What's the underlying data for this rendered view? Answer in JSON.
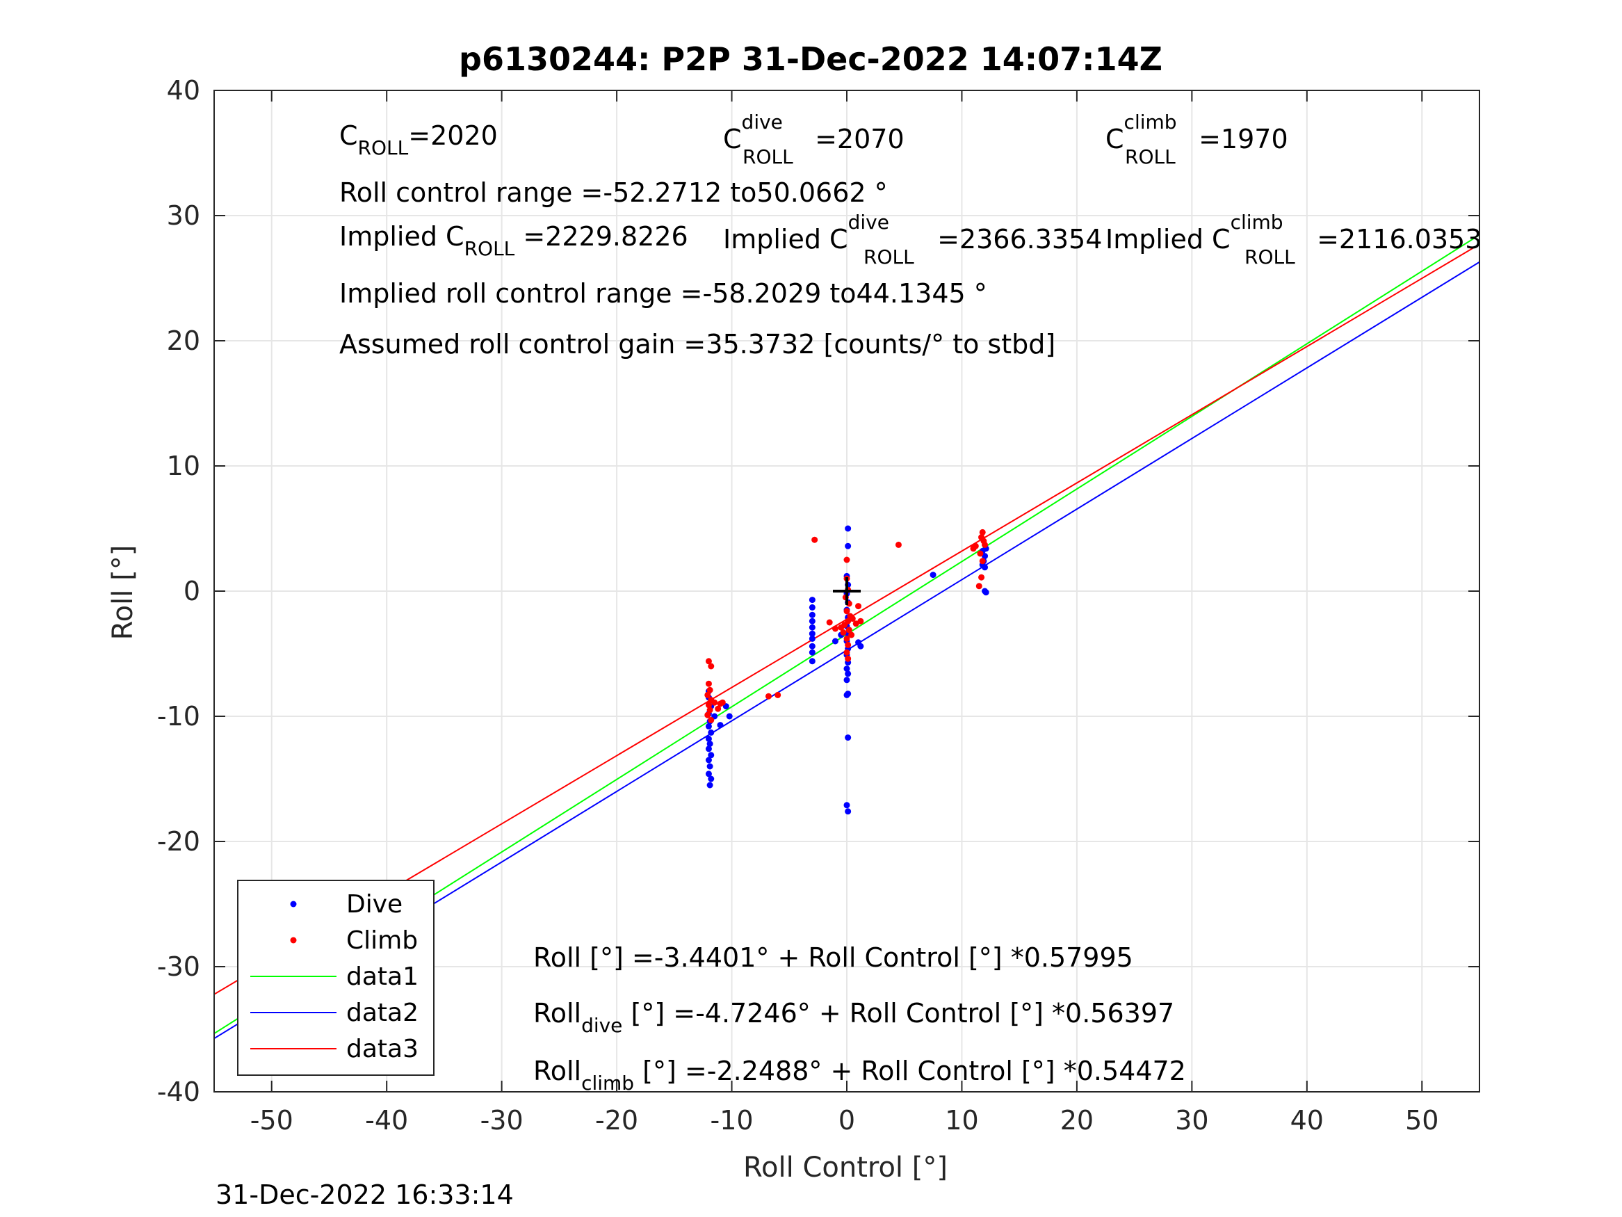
{
  "footer_timestamp": "31-Dec-2022 16:33:14",
  "colors": {
    "dive": "#0000ff",
    "climb": "#ff0000",
    "data1": "#00ff00",
    "data2": "#0000ff",
    "data3": "#ff0000",
    "grid": "#e6e6e6",
    "axis": "#262626"
  },
  "annotations": {
    "c_roll": {
      "base": "C",
      "sub": "ROLL",
      "val": "=2020"
    },
    "c_roll_dive": {
      "base": "C",
      "sup": "dive",
      "sub": "ROLL",
      "val": " =2070"
    },
    "c_roll_climb": {
      "base": "C",
      "sup": "climb",
      "sub": "ROLL",
      "val": " =1970"
    },
    "roll_control_range": "Roll control range =-52.2712 to50.0662 °",
    "implied_c_roll": {
      "base": "Implied C",
      "sub": "ROLL",
      "val": " =2229.8226"
    },
    "implied_c_roll_dive": {
      "base": "Implied C",
      "sup": "dive",
      "sub": "ROLL",
      "val": " =2366.3354"
    },
    "implied_c_roll_climb": {
      "base": "Implied C",
      "sup": "climb",
      "sub": "ROLL",
      "val": " =2116.0353"
    },
    "implied_roll_control_range": "Implied roll control range =-58.2029 to44.1345 °",
    "assumed_gain": "Assumed roll control gain =35.3732 [counts/° to stbd]",
    "fit_all": {
      "base": "Roll",
      "rest": " [°] =-3.4401° + Roll Control [°] *0.57995"
    },
    "fit_dive": {
      "base": "Roll",
      "sub": "dive",
      "rest": " [°] =-4.7246° + Roll Control [°] *0.56397"
    },
    "fit_climb": {
      "base": "Roll",
      "sub": "climb",
      "rest": " [°] =-2.2488° + Roll Control [°] *0.54472"
    }
  },
  "chart_data": {
    "type": "scatter",
    "title": "p6130244: P2P 31-Dec-2022 14:07:14Z",
    "xlabel": "Roll Control [°]",
    "ylabel": "Roll [°]",
    "xlim": [
      -55,
      55
    ],
    "ylim": [
      -40,
      40
    ],
    "xticks": [
      -50,
      -40,
      -30,
      -20,
      -10,
      0,
      10,
      20,
      30,
      40,
      50
    ],
    "yticks": [
      -40,
      -30,
      -20,
      -10,
      0,
      10,
      20,
      30,
      40
    ],
    "grid": true,
    "legend_position": "bottom-left",
    "legend": [
      "Dive",
      "Climb",
      "data1",
      "data2",
      "data3"
    ],
    "series": [
      {
        "name": "Dive",
        "kind": "points",
        "points": [
          [
            0.1,
            5.0
          ],
          [
            0.1,
            3.6
          ],
          [
            0.0,
            1.2
          ],
          [
            0.1,
            0.5
          ],
          [
            0.0,
            -0.2
          ],
          [
            0.1,
            -0.9
          ],
          [
            0.0,
            -1.5
          ],
          [
            0.1,
            -2.1
          ],
          [
            0.0,
            -2.8
          ],
          [
            0.1,
            -3.4
          ],
          [
            0.0,
            -4.0
          ],
          [
            0.1,
            -4.6
          ],
          [
            0.0,
            -5.1
          ],
          [
            0.1,
            -5.7
          ],
          [
            0.0,
            -6.2
          ],
          [
            0.1,
            -6.6
          ],
          [
            0.0,
            -7.1
          ],
          [
            0.1,
            -8.2
          ],
          [
            0.0,
            -8.3
          ],
          [
            0.1,
            -11.7
          ],
          [
            0.0,
            -17.1
          ],
          [
            0.1,
            -17.6
          ],
          [
            1.0,
            -4.1
          ],
          [
            1.2,
            -4.4
          ],
          [
            -0.5,
            -3.5
          ],
          [
            -1.0,
            -4.0
          ],
          [
            -3.0,
            -0.7
          ],
          [
            -3.0,
            -1.3
          ],
          [
            -3.0,
            -1.9
          ],
          [
            -3.0,
            -2.4
          ],
          [
            -3.0,
            -2.9
          ],
          [
            -3.0,
            -3.4
          ],
          [
            -3.0,
            -3.8
          ],
          [
            -3.0,
            -4.4
          ],
          [
            -3.0,
            -4.9
          ],
          [
            -3.0,
            -5.6
          ],
          [
            -12.0,
            -8.0
          ],
          [
            -12.0,
            -8.5
          ],
          [
            -11.8,
            -9.2
          ],
          [
            -12.0,
            -9.8
          ],
          [
            -11.9,
            -10.4
          ],
          [
            -12.0,
            -10.8
          ],
          [
            -11.8,
            -11.3
          ],
          [
            -12.0,
            -11.8
          ],
          [
            -11.9,
            -12.2
          ],
          [
            -12.0,
            -12.6
          ],
          [
            -11.8,
            -13.1
          ],
          [
            -12.0,
            -13.5
          ],
          [
            -11.9,
            -14.0
          ],
          [
            -12.0,
            -14.6
          ],
          [
            -11.8,
            -15.0
          ],
          [
            -11.9,
            -15.5
          ],
          [
            -11.5,
            -10.0
          ],
          [
            -11.0,
            -10.7
          ],
          [
            -10.5,
            -9.2
          ],
          [
            -10.2,
            -10.0
          ],
          [
            7.5,
            1.3
          ],
          [
            11.8,
            3.2
          ],
          [
            12.0,
            2.8
          ],
          [
            11.9,
            2.4
          ],
          [
            12.0,
            1.9
          ],
          [
            11.8,
            2.1
          ],
          [
            12.1,
            3.4
          ],
          [
            12.0,
            0.0
          ],
          [
            12.1,
            -0.1
          ]
        ]
      },
      {
        "name": "Climb",
        "kind": "points",
        "points": [
          [
            -2.8,
            4.1
          ],
          [
            4.5,
            3.7
          ],
          [
            0.0,
            2.5
          ],
          [
            0.0,
            1.0
          ],
          [
            0.1,
            0.1
          ],
          [
            -0.1,
            -0.5
          ],
          [
            0.2,
            -1.0
          ],
          [
            0.0,
            -1.6
          ],
          [
            0.3,
            -2.0
          ],
          [
            0.1,
            -2.4
          ],
          [
            -0.2,
            -2.7
          ],
          [
            0.5,
            -2.2
          ],
          [
            0.8,
            -2.6
          ],
          [
            -0.5,
            -2.9
          ],
          [
            0.2,
            -3.1
          ],
          [
            0.4,
            -3.5
          ],
          [
            0.0,
            -3.8
          ],
          [
            -0.3,
            -3.3
          ],
          [
            0.1,
            -4.3
          ],
          [
            0.0,
            -4.9
          ],
          [
            0.1,
            -5.4
          ],
          [
            1.0,
            -1.2
          ],
          [
            1.2,
            -2.4
          ],
          [
            -1.5,
            -2.5
          ],
          [
            -1.0,
            -3.0
          ],
          [
            -6.8,
            -8.4
          ],
          [
            -6.0,
            -8.3
          ],
          [
            -12.0,
            -5.6
          ],
          [
            -11.8,
            -6.0
          ],
          [
            -12.0,
            -7.4
          ],
          [
            -11.9,
            -7.9
          ],
          [
            -12.1,
            -8.3
          ],
          [
            -11.8,
            -8.7
          ],
          [
            -12.0,
            -9.1
          ],
          [
            -11.9,
            -9.5
          ],
          [
            -12.1,
            -9.9
          ],
          [
            -11.8,
            -10.3
          ],
          [
            -11.5,
            -8.9
          ],
          [
            -11.2,
            -9.4
          ],
          [
            -11.0,
            -9.0
          ],
          [
            -10.8,
            -8.9
          ],
          [
            11.0,
            3.4
          ],
          [
            11.2,
            3.6
          ],
          [
            11.7,
            4.3
          ],
          [
            11.8,
            4.7
          ],
          [
            11.9,
            4.0
          ],
          [
            12.0,
            3.7
          ],
          [
            11.6,
            3.0
          ],
          [
            11.8,
            2.4
          ],
          [
            11.7,
            1.1
          ],
          [
            11.5,
            0.4
          ]
        ]
      },
      {
        "name": "data1",
        "kind": "line",
        "x": [
          -55,
          55
        ],
        "y": [
          -35.34,
          28.46
        ]
      },
      {
        "name": "data2",
        "kind": "line",
        "x": [
          -55,
          55
        ],
        "y": [
          -35.74,
          26.29
        ]
      },
      {
        "name": "data3",
        "kind": "line",
        "x": [
          -55,
          55
        ],
        "y": [
          -32.21,
          27.71
        ]
      }
    ],
    "marker": {
      "type": "plus",
      "x": 0,
      "y": 0
    }
  }
}
